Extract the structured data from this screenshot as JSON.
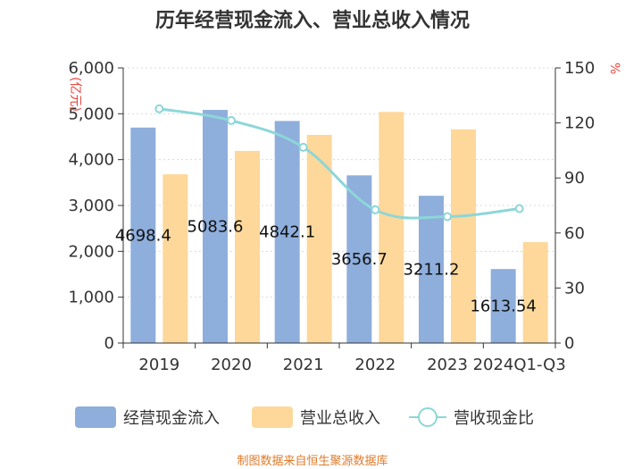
{
  "chart_data": {
    "type": "bar",
    "title": "历年经营现金流入、营业总收入情况",
    "categories": [
      "2019",
      "2020",
      "2021",
      "2022",
      "2023",
      "2024Q1-Q3"
    ],
    "series": [
      {
        "name": "经营现金流入",
        "kind": "bar",
        "axis": "left",
        "color": "#8eaedc",
        "values": [
          4698.4,
          5083.6,
          4842.1,
          3656.7,
          3211.2,
          1613.5
        ],
        "labels": [
          "4698.4",
          "5083.6",
          "4842.1",
          "3656.7",
          "3211.2",
          "1613.54"
        ]
      },
      {
        "name": "营业总收入",
        "kind": "bar",
        "axis": "left",
        "color": "#fdd89a",
        "values": [
          3680,
          4190,
          4540,
          5040,
          4660,
          2200
        ]
      },
      {
        "name": "营收现金比",
        "kind": "line",
        "axis": "right",
        "color": "#8dd6d8",
        "values": [
          127.7,
          121.3,
          106.7,
          72.6,
          68.9,
          73.3
        ]
      }
    ],
    "y_left": {
      "unit": "亿元",
      "ylim": [
        0,
        6000
      ],
      "ticks": [
        "0",
        "1,000",
        "2,000",
        "3,000",
        "4,000",
        "5,000",
        "6,000"
      ]
    },
    "y_right": {
      "unit": "%",
      "ylim": [
        0,
        150
      ],
      "ticks": [
        "0",
        "30",
        "60",
        "90",
        "120",
        "150"
      ]
    },
    "grid": true,
    "legend_position": "bottom",
    "source": "制图数据来自恒生聚源数据库"
  }
}
